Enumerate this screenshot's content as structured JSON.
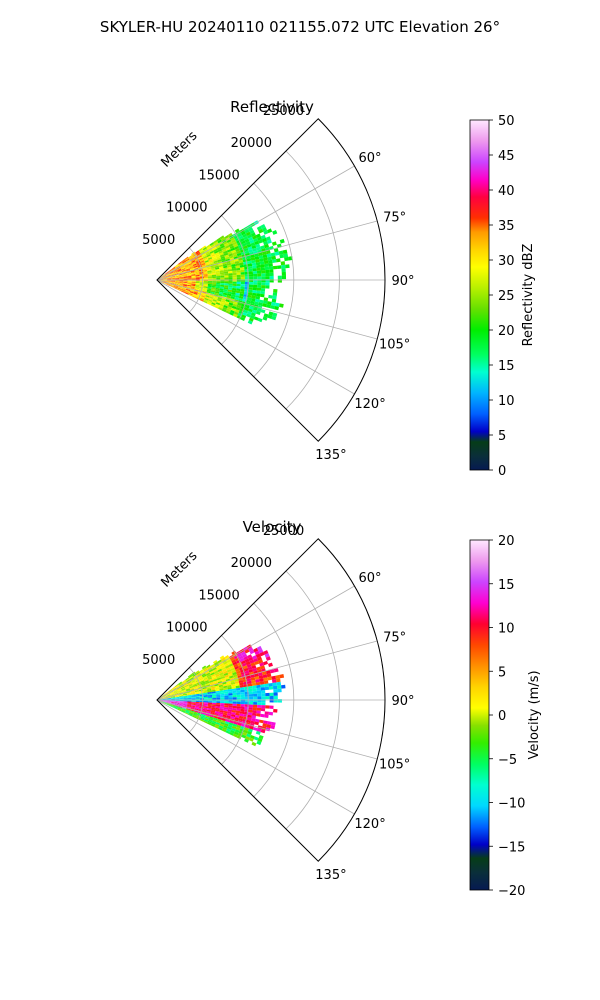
{
  "figure": {
    "suptitle": "SKYLER-HU  20240110  021155.072 UTC Elevation 26°"
  },
  "chart_data": [
    {
      "type": "heatmap",
      "projection": "polar-sector",
      "title": "Reflectivity",
      "radial_axis_label": "Meters",
      "radial_ticks": [
        "5000",
        "10000",
        "15000",
        "20000",
        "25000"
      ],
      "radial_tick_values": [
        5000,
        10000,
        15000,
        20000,
        25000
      ],
      "rmax": 25000,
      "angle_ticks": [
        "60°",
        "75°",
        "90°",
        "105°",
        "120°",
        "135°"
      ],
      "angle_tick_values": [
        60,
        75,
        90,
        105,
        120,
        135
      ],
      "angle_range_deg": [
        45,
        135
      ],
      "data_extent_m": {
        "near": 0,
        "far": 14500
      },
      "grid": true,
      "colorbar": {
        "label": "Reflectivity dBZ",
        "ticks": [
          "0",
          "5",
          "10",
          "15",
          "20",
          "25",
          "30",
          "35",
          "40",
          "45",
          "50"
        ],
        "vmin": 0,
        "vmax": 50,
        "stops": [
          [
            0,
            "#061a52"
          ],
          [
            0.04,
            "#0a2f3a"
          ],
          [
            0.08,
            "#063d18"
          ],
          [
            0.11,
            "#0000c8"
          ],
          [
            0.16,
            "#0060ff"
          ],
          [
            0.22,
            "#00b4ff"
          ],
          [
            0.28,
            "#00ffd0"
          ],
          [
            0.33,
            "#00ff60"
          ],
          [
            0.4,
            "#00ee00"
          ],
          [
            0.46,
            "#66e000"
          ],
          [
            0.52,
            "#b8f000"
          ],
          [
            0.58,
            "#ffff00"
          ],
          [
            0.63,
            "#ffd400"
          ],
          [
            0.68,
            "#ff9a00"
          ],
          [
            0.72,
            "#ff3000"
          ],
          [
            0.78,
            "#ff0040"
          ],
          [
            0.83,
            "#ff00c8"
          ],
          [
            0.88,
            "#cc44ff"
          ],
          [
            0.94,
            "#ee99ee"
          ],
          [
            1.0,
            "#ffe8ff"
          ]
        ]
      },
      "field_description": [
        {
          "range_m": [
            0,
            5000
          ],
          "angles": [
            50,
            110
          ],
          "value_dbz": 33
        },
        {
          "range_m": [
            5000,
            9500
          ],
          "angles": [
            52,
            112
          ],
          "value_dbz": 27
        },
        {
          "range_m": [
            9500,
            14500
          ],
          "angles": [
            56,
            112
          ],
          "value_dbz": 17
        }
      ]
    },
    {
      "type": "heatmap",
      "projection": "polar-sector",
      "title": "Velocity",
      "radial_axis_label": "Meters",
      "radial_ticks": [
        "5000",
        "10000",
        "15000",
        "20000",
        "25000"
      ],
      "radial_tick_values": [
        5000,
        10000,
        15000,
        20000,
        25000
      ],
      "rmax": 25000,
      "angle_ticks": [
        "60°",
        "75°",
        "90°",
        "105°",
        "120°",
        "135°"
      ],
      "angle_tick_values": [
        60,
        75,
        90,
        105,
        120,
        135
      ],
      "angle_range_deg": [
        45,
        135
      ],
      "data_extent_m": {
        "near": 0,
        "far": 14500
      },
      "grid": true,
      "colorbar": {
        "label": "Velocity (m/s)",
        "ticks": [
          "−20",
          "−15",
          "−10",
          "−5",
          "0",
          "5",
          "10",
          "15",
          "20"
        ],
        "vmin": -20,
        "vmax": 20,
        "stops": [
          [
            0,
            "#061a52"
          ],
          [
            0.05,
            "#0a2f3a"
          ],
          [
            0.09,
            "#063d18"
          ],
          [
            0.13,
            "#0000c8"
          ],
          [
            0.18,
            "#0060ff"
          ],
          [
            0.24,
            "#00d8ff"
          ],
          [
            0.3,
            "#00ffd0"
          ],
          [
            0.36,
            "#00ff60"
          ],
          [
            0.42,
            "#33ee00"
          ],
          [
            0.47,
            "#88e000"
          ],
          [
            0.52,
            "#ffff00"
          ],
          [
            0.58,
            "#ffd400"
          ],
          [
            0.64,
            "#ff9000"
          ],
          [
            0.7,
            "#ff4800"
          ],
          [
            0.76,
            "#ff0030"
          ],
          [
            0.82,
            "#ff00d0"
          ],
          [
            0.88,
            "#cc44ff"
          ],
          [
            0.94,
            "#ee99ee"
          ],
          [
            1.0,
            "#ffe8ff"
          ]
        ]
      },
      "field_description": [
        {
          "angles": [
            52,
            80
          ],
          "value_ms": 2
        },
        {
          "angles": [
            80,
            92
          ],
          "value_ms": -10
        },
        {
          "angles": [
            92,
            110
          ],
          "value_ms": 11
        }
      ]
    }
  ]
}
